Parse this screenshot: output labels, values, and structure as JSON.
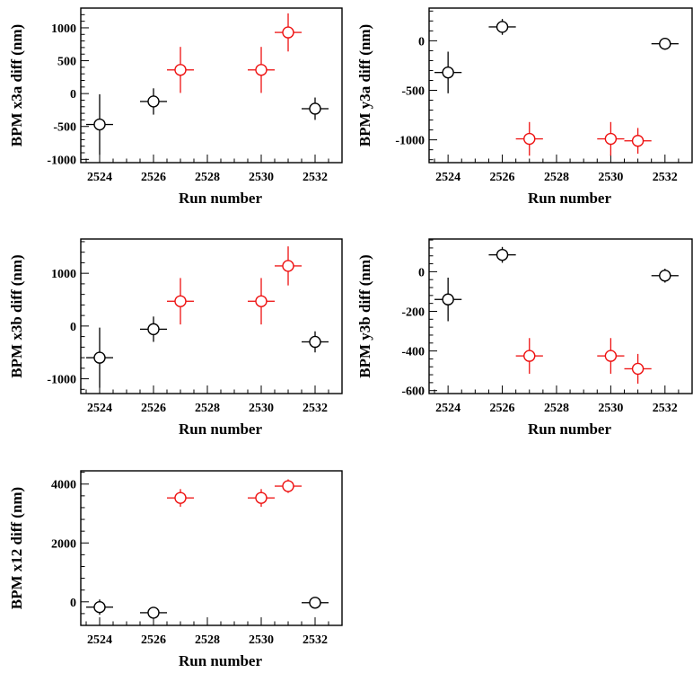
{
  "chart_data": [
    {
      "type": "scatter",
      "xlabel": "Run number",
      "ylabel": "BPM x3a diff (nm)",
      "xlim": [
        2523.3,
        2533.0
      ],
      "ylim": [
        -1050,
        1300
      ],
      "xticks": [
        2524,
        2526,
        2528,
        2530,
        2532
      ],
      "yticks": [
        -1000,
        -500,
        0,
        500,
        1000
      ],
      "yticklabels": [
        "-1000",
        "-500",
        "0",
        "500",
        "1000"
      ],
      "points": [
        {
          "x": 2524,
          "y": -470,
          "yerr": 460,
          "color": "#000000"
        },
        {
          "x": 2526,
          "y": -120,
          "yerr": 200,
          "color": "#000000"
        },
        {
          "x": 2527,
          "y": 360,
          "yerr": 350,
          "color": "#ee1111"
        },
        {
          "x": 2530,
          "y": 360,
          "yerr": 350,
          "color": "#ee1111"
        },
        {
          "x": 2531,
          "y": 930,
          "yerr": 290,
          "color": "#ee1111"
        },
        {
          "x": 2532,
          "y": -230,
          "yerr": 170,
          "color": "#000000"
        }
      ]
    },
    {
      "type": "scatter",
      "xlabel": "Run number",
      "ylabel": "BPM y3a diff (nm)",
      "xlim": [
        2523.3,
        2533.0
      ],
      "ylim": [
        -1230,
        330
      ],
      "xticks": [
        2524,
        2526,
        2528,
        2530,
        2532
      ],
      "yticks": [
        -1000,
        -500,
        0
      ],
      "yticklabels": [
        "-1000",
        "-500",
        "0"
      ],
      "points": [
        {
          "x": 2524,
          "y": -320,
          "yerr": 210,
          "color": "#000000"
        },
        {
          "x": 2526,
          "y": 140,
          "yerr": 80,
          "color": "#000000"
        },
        {
          "x": 2527,
          "y": -990,
          "yerr": 170,
          "color": "#ee1111"
        },
        {
          "x": 2530,
          "y": -990,
          "yerr": 170,
          "color": "#ee1111"
        },
        {
          "x": 2531,
          "y": -1010,
          "yerr": 130,
          "color": "#ee1111"
        },
        {
          "x": 2532,
          "y": -30,
          "yerr": 60,
          "color": "#000000"
        }
      ]
    },
    {
      "type": "scatter",
      "xlabel": "Run number",
      "ylabel": "BPM x3b diff (nm)",
      "xlim": [
        2523.3,
        2533.0
      ],
      "ylim": [
        -1280,
        1650
      ],
      "xticks": [
        2524,
        2526,
        2528,
        2530,
        2532
      ],
      "yticks": [
        -1000,
        0,
        1000
      ],
      "yticklabels": [
        "-1000",
        "0",
        "1000"
      ],
      "points": [
        {
          "x": 2524,
          "y": -600,
          "yerr": 570,
          "color": "#000000"
        },
        {
          "x": 2526,
          "y": -60,
          "yerr": 240,
          "color": "#000000"
        },
        {
          "x": 2527,
          "y": 470,
          "yerr": 440,
          "color": "#ee1111"
        },
        {
          "x": 2530,
          "y": 470,
          "yerr": 440,
          "color": "#ee1111"
        },
        {
          "x": 2531,
          "y": 1140,
          "yerr": 370,
          "color": "#ee1111"
        },
        {
          "x": 2532,
          "y": -300,
          "yerr": 200,
          "color": "#000000"
        }
      ]
    },
    {
      "type": "scatter",
      "xlabel": "Run number",
      "ylabel": "BPM y3b diff (nm)",
      "xlim": [
        2523.3,
        2533.0
      ],
      "ylim": [
        -615,
        165
      ],
      "xticks": [
        2524,
        2526,
        2528,
        2530,
        2532
      ],
      "yticks": [
        -600,
        -400,
        -200,
        0
      ],
      "yticklabels": [
        "-600",
        "-400",
        "-200",
        "0"
      ],
      "points": [
        {
          "x": 2524,
          "y": -140,
          "yerr": 110,
          "color": "#000000"
        },
        {
          "x": 2526,
          "y": 85,
          "yerr": 40,
          "color": "#000000"
        },
        {
          "x": 2527,
          "y": -425,
          "yerr": 90,
          "color": "#ee1111"
        },
        {
          "x": 2530,
          "y": -425,
          "yerr": 90,
          "color": "#ee1111"
        },
        {
          "x": 2531,
          "y": -490,
          "yerr": 75,
          "color": "#ee1111"
        },
        {
          "x": 2532,
          "y": -20,
          "yerr": 35,
          "color": "#000000"
        }
      ]
    },
    {
      "type": "scatter",
      "xlabel": "Run number",
      "ylabel": "BPM x12 diff (nm)",
      "xlim": [
        2523.3,
        2533.0
      ],
      "ylim": [
        -800,
        4450
      ],
      "xticks": [
        2524,
        2526,
        2528,
        2530,
        2532
      ],
      "yticks": [
        0,
        2000,
        4000
      ],
      "yticklabels": [
        "0",
        "2000",
        "4000"
      ],
      "points": [
        {
          "x": 2524,
          "y": -180,
          "yerr": 260,
          "color": "#000000"
        },
        {
          "x": 2526,
          "y": -370,
          "yerr": 60,
          "color": "#000000"
        },
        {
          "x": 2527,
          "y": 3530,
          "yerr": 300,
          "color": "#ee1111"
        },
        {
          "x": 2530,
          "y": 3530,
          "yerr": 300,
          "color": "#ee1111"
        },
        {
          "x": 2531,
          "y": 3930,
          "yerr": 230,
          "color": "#ee1111"
        },
        {
          "x": 2532,
          "y": -30,
          "yerr": 100,
          "color": "#000000"
        }
      ]
    }
  ]
}
